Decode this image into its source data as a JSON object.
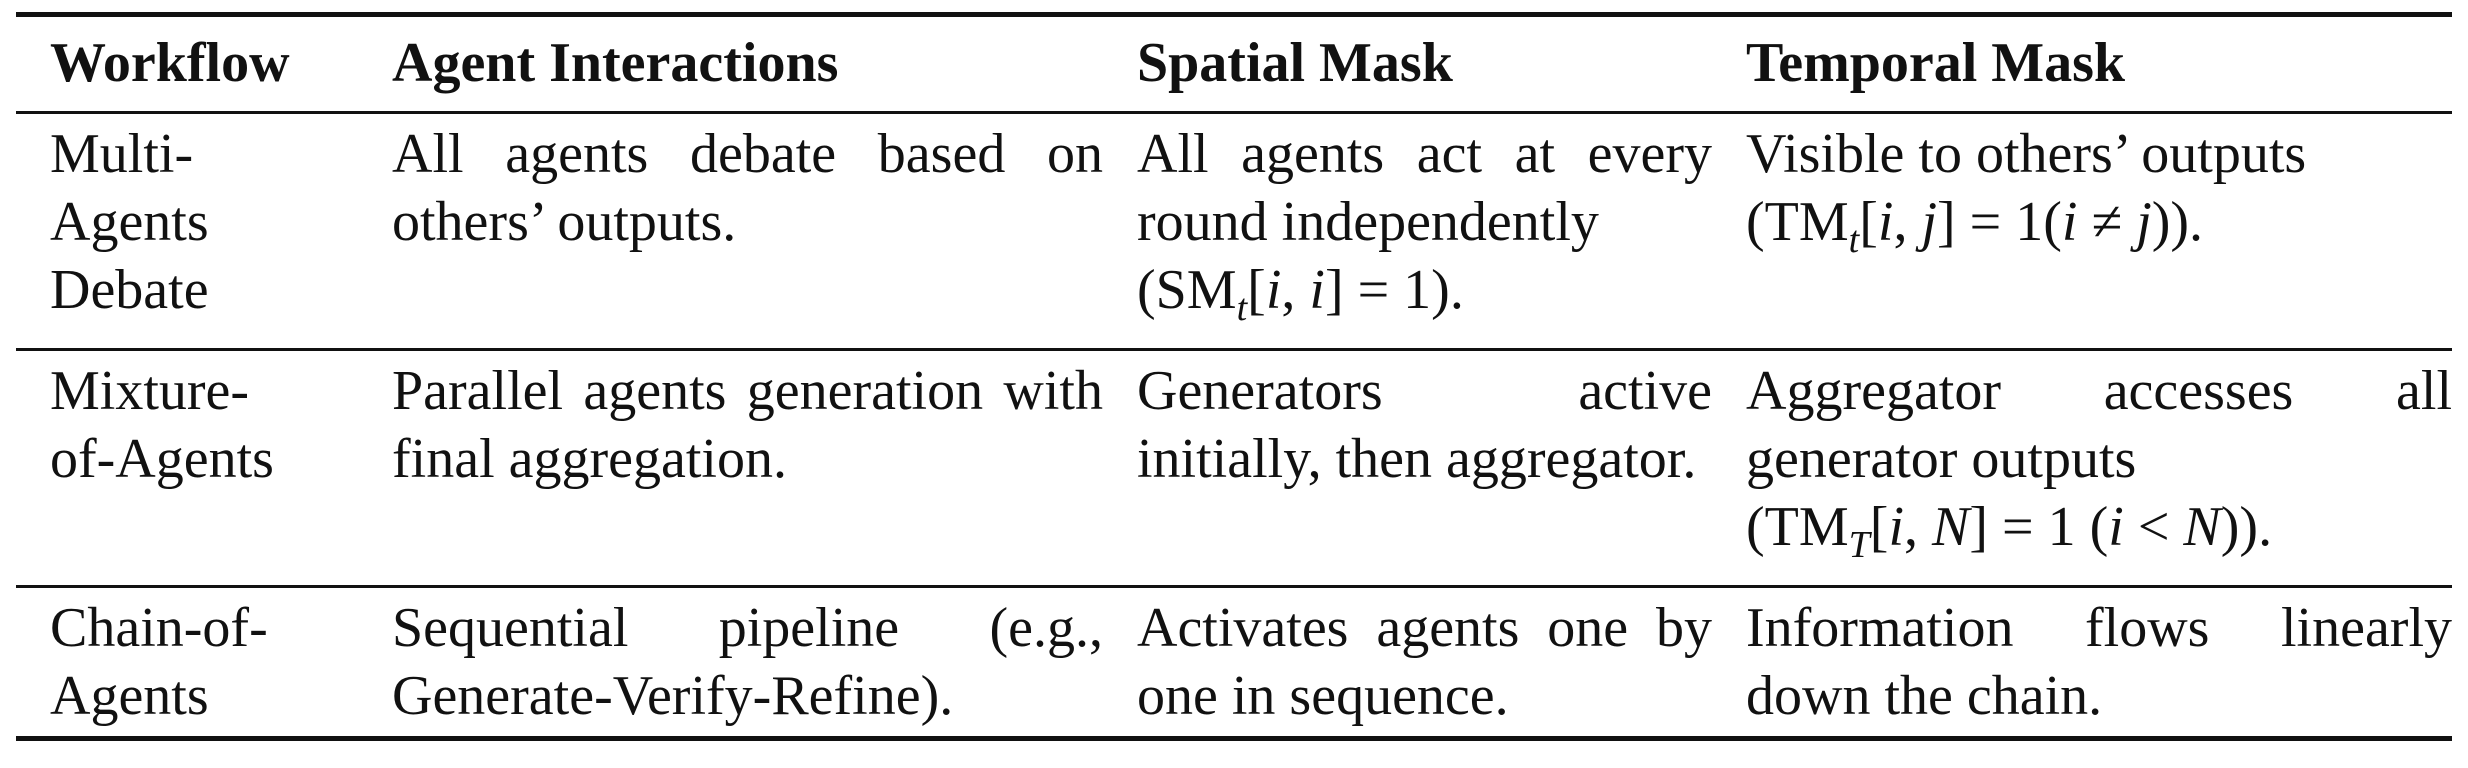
{
  "table": {
    "headers": [
      "Workflow",
      "Agent Interactions",
      "Spatial Mask",
      "Temporal Mask"
    ],
    "rows": [
      {
        "workflow": [
          "Multi-",
          "Agents",
          "Debate"
        ],
        "interactions": "All agents debate based on others’ outputs.",
        "spatial_text": "All agents act at every round independently",
        "spatial_formula": "(SMt[i, i] = 1).",
        "temporal_text": "Visible to others’ outputs",
        "temporal_formula": "(TMt[i, j] = 1(i ≠ j))."
      },
      {
        "workflow": [
          "Mixture-",
          "of-Agents"
        ],
        "interactions": "Parallel agents generation with final aggregation.",
        "spatial_text": "Generators active initially, then aggregator.",
        "temporal_text": "Aggregator accesses all generator outputs",
        "temporal_formula": "(TMT[i, N] = 1 (i < N))."
      },
      {
        "workflow": [
          "Chain-of-",
          "Agents"
        ],
        "interactions": "Sequential pipeline (e.g., Generate-Verify-Refine).",
        "spatial_text": "Activates agents one by one in sequence.",
        "temporal_text": "Information flows linearly down the chain."
      }
    ]
  }
}
